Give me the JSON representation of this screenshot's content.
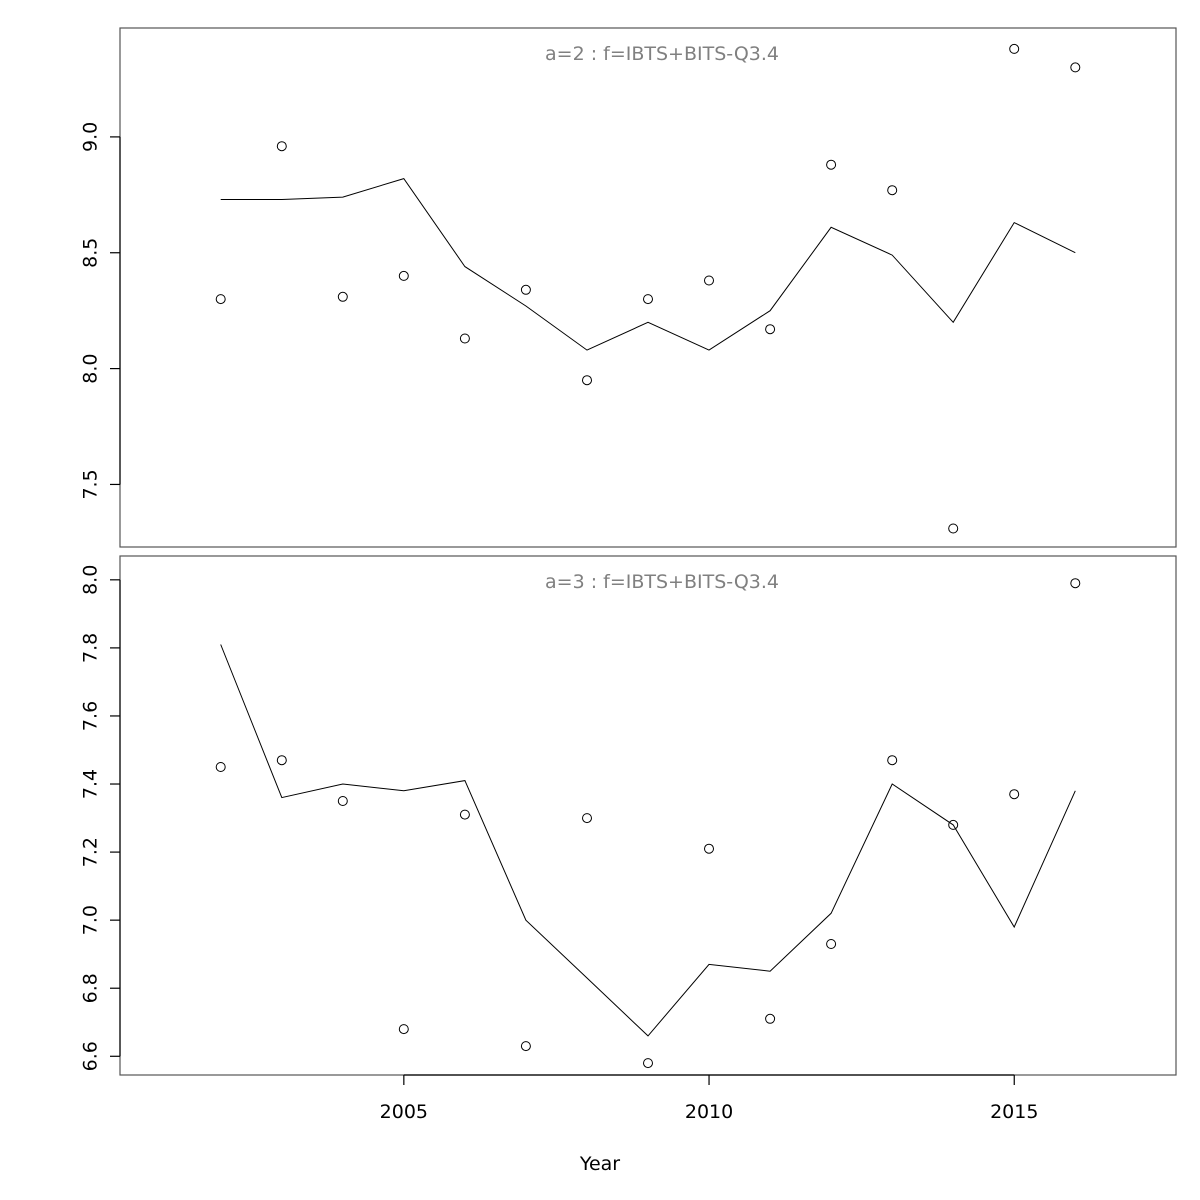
{
  "chart_data": [
    {
      "type": "line",
      "title": "a=2  :  f=IBTS+BITS-Q3.4",
      "xlabel": "Year",
      "ylabel": "",
      "xlim": [
        2000.35,
        2017.65
      ],
      "ylim": [
        7.23,
        9.47
      ],
      "yticks": [
        "7.5",
        "8.0",
        "8.5",
        "9.0"
      ],
      "x": [
        2002,
        2003,
        2004,
        2005,
        2006,
        2007,
        2008,
        2009,
        2010,
        2011,
        2012,
        2013,
        2014,
        2015,
        2016
      ],
      "series": [
        {
          "kind": "line",
          "values": [
            8.73,
            8.73,
            8.74,
            8.82,
            8.44,
            8.27,
            8.08,
            8.2,
            8.08,
            8.25,
            8.61,
            8.49,
            8.2,
            8.63,
            8.5
          ]
        },
        {
          "kind": "points",
          "values": [
            8.3,
            8.96,
            8.31,
            8.4,
            8.13,
            8.34,
            7.95,
            8.3,
            8.38,
            8.17,
            8.88,
            8.77,
            7.31,
            9.38,
            9.3
          ]
        }
      ]
    },
    {
      "type": "line",
      "title": "a=3  :  f=IBTS+BITS-Q3.4",
      "xlabel": "Year",
      "ylabel": "",
      "xlim": [
        2000.35,
        2017.65
      ],
      "ylim": [
        6.545,
        8.07
      ],
      "yticks": [
        "6.6",
        "6.8",
        "7.0",
        "7.2",
        "7.4",
        "7.6",
        "7.8",
        "8.0"
      ],
      "xticks": [
        "2005",
        "2010",
        "2015"
      ],
      "x": [
        2002,
        2003,
        2004,
        2005,
        2006,
        2007,
        2008,
        2009,
        2010,
        2011,
        2012,
        2013,
        2014,
        2015,
        2016
      ],
      "series": [
        {
          "kind": "line",
          "values": [
            7.81,
            7.36,
            7.4,
            7.38,
            7.41,
            7.0,
            6.83,
            6.66,
            6.87,
            6.85,
            7.02,
            7.4,
            7.28,
            6.98,
            7.38
          ]
        },
        {
          "kind": "points",
          "values": [
            7.45,
            7.47,
            7.35,
            6.68,
            7.31,
            6.63,
            7.3,
            6.58,
            7.21,
            6.71,
            6.93,
            7.47,
            7.28,
            7.37,
            7.99
          ]
        }
      ]
    }
  ]
}
